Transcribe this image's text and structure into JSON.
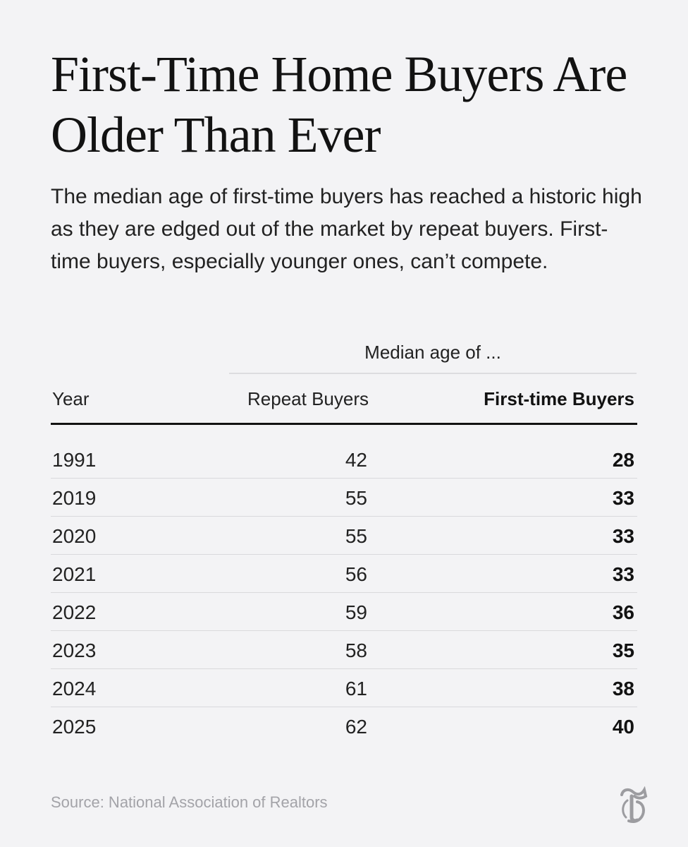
{
  "title": "First-Time Home Buyers Are Older Than Ever",
  "subtitle": "The median age of first-time buyers has reached a historic high as they are edged out of the market by repeat buyers. First-time buyers, especially younger ones, can’t compete.",
  "chart_data": {
    "type": "table",
    "group_header": "Median age of ...",
    "columns": [
      "Year",
      "Repeat Buyers",
      "First-time Buyers"
    ],
    "rows": [
      {
        "year": "1991",
        "repeat": "42",
        "first": "28"
      },
      {
        "year": "2019",
        "repeat": "55",
        "first": "33"
      },
      {
        "year": "2020",
        "repeat": "55",
        "first": "33"
      },
      {
        "year": "2021",
        "repeat": "56",
        "first": "33"
      },
      {
        "year": "2022",
        "repeat": "59",
        "first": "36"
      },
      {
        "year": "2023",
        "repeat": "58",
        "first": "35"
      },
      {
        "year": "2024",
        "repeat": "61",
        "first": "38"
      },
      {
        "year": "2025",
        "repeat": "62",
        "first": "40"
      }
    ]
  },
  "source": "Source: National Association of Realtors",
  "logo_icon": "nyt-t-logo-icon",
  "colors": {
    "background": "#f3f3f5",
    "text": "#121212",
    "muted": "#a3a3a8",
    "logo": "#9c9ca0"
  }
}
